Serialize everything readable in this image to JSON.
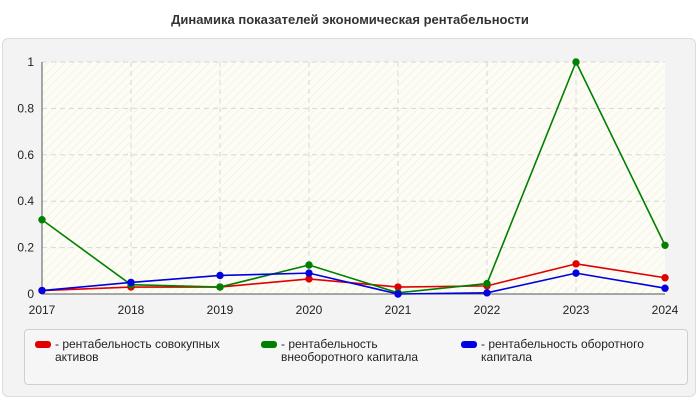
{
  "chart_data": {
    "type": "line",
    "title": "Динамика показателей экономическая рентабельности",
    "xlabel": "",
    "ylabel": "",
    "categories": [
      "2017",
      "2018",
      "2019",
      "2020",
      "2021",
      "2022",
      "2023",
      "2024"
    ],
    "ylim": [
      0,
      1
    ],
    "yticks": [
      0,
      0.2,
      0.4,
      0.6,
      0.8,
      1
    ],
    "ytick_labels": [
      "0",
      "0.2",
      "0.4",
      "0.6",
      "0.8",
      "1"
    ],
    "grid": true,
    "legend_position": "bottom",
    "series": [
      {
        "name": "- рентабельность совокупных\nактивов",
        "color": "#e00000",
        "values": [
          0.015,
          0.03,
          0.03,
          0.065,
          0.03,
          0.035,
          0.13,
          0.07
        ]
      },
      {
        "name": "- рентабельность\nвнеоборотного капитала",
        "color": "#008000",
        "values": [
          0.32,
          0.04,
          0.03,
          0.125,
          0.005,
          0.045,
          1.0,
          0.21
        ]
      },
      {
        "name": "- рентабельность оборотного\nкапитала",
        "color": "#0000e0",
        "values": [
          0.015,
          0.05,
          0.08,
          0.09,
          0.0,
          0.005,
          0.09,
          0.025
        ]
      }
    ]
  }
}
